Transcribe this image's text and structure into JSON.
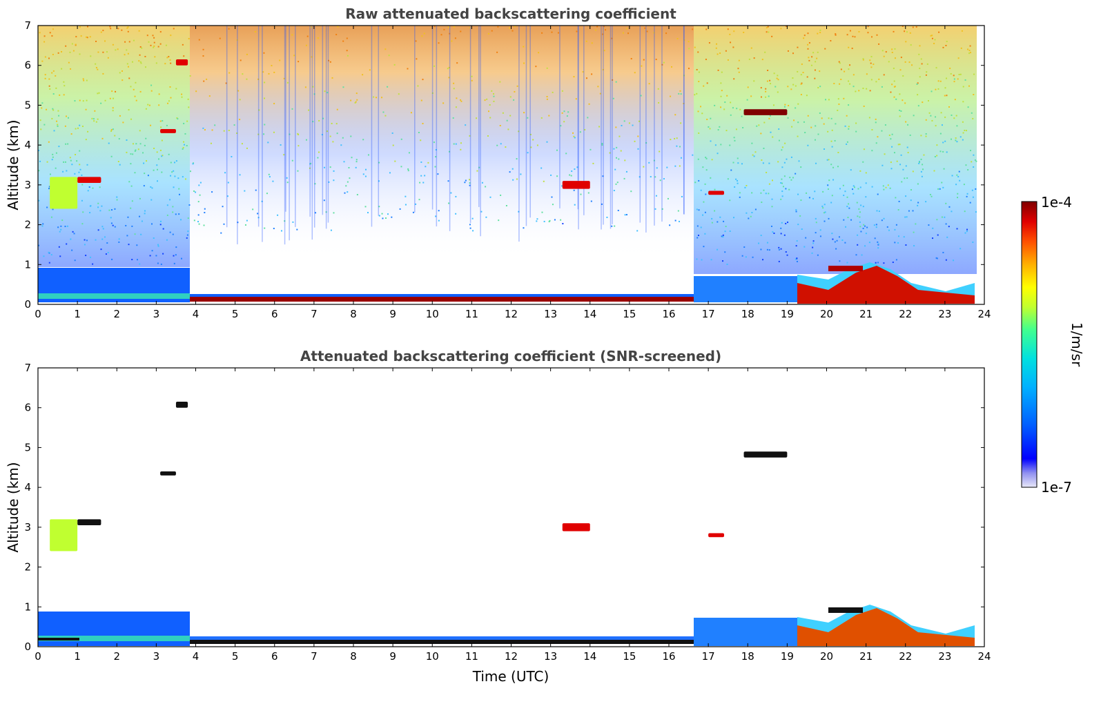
{
  "chart_data": [
    {
      "type": "heatmap",
      "title": "Raw attenuated backscattering coefficient",
      "xlabel": "",
      "ylabel": "Altitude (km)",
      "xlim": [
        0,
        24
      ],
      "ylim": [
        0,
        7
      ],
      "xticks": [
        "0",
        "1",
        "2",
        "3",
        "4",
        "5",
        "6",
        "7",
        "8",
        "9",
        "10",
        "11",
        "12",
        "13",
        "14",
        "15",
        "16",
        "17",
        "18",
        "19",
        "20",
        "21",
        "22",
        "23",
        "24"
      ],
      "yticks": [
        "0",
        "1",
        "2",
        "3",
        "4",
        "5",
        "6",
        "7"
      ],
      "grid": false,
      "features": [
        {
          "kind": "surface_layer",
          "x": [
            0,
            3.85
          ],
          "y": [
            0,
            0.85
          ],
          "level": 0.25
        },
        {
          "kind": "surface_layer",
          "x": [
            3.85,
            16.7
          ],
          "y": [
            0,
            0.2
          ],
          "level": 0.95
        },
        {
          "kind": "surface_layer",
          "x": [
            16.7,
            19.2
          ],
          "y": [
            0,
            0.7
          ],
          "level": 0.3
        },
        {
          "kind": "surface_layer",
          "x": [
            19.2,
            23.8
          ],
          "y": [
            0,
            1.0
          ],
          "level": 0.8
        },
        {
          "kind": "cloud",
          "x": [
            3.5,
            3.8
          ],
          "y": [
            6.0,
            6.15
          ],
          "level": 0.95
        },
        {
          "kind": "cloud",
          "x": [
            3.1,
            3.5
          ],
          "y": [
            4.3,
            4.4
          ],
          "level": 0.95
        },
        {
          "kind": "cloud",
          "x": [
            1.0,
            1.6
          ],
          "y": [
            3.05,
            3.2
          ],
          "level": 0.9
        },
        {
          "kind": "cloud",
          "x": [
            0.3,
            1.0
          ],
          "y": [
            2.4,
            3.2
          ],
          "level": 0.55
        },
        {
          "kind": "cloud",
          "x": [
            13.3,
            14.0
          ],
          "y": [
            2.9,
            3.1
          ],
          "level": 0.9
        },
        {
          "kind": "cloud",
          "x": [
            17.9,
            19.0
          ],
          "y": [
            4.75,
            4.9
          ],
          "level": 0.98
        },
        {
          "kind": "cloud",
          "x": [
            17.0,
            17.4
          ],
          "y": [
            2.75,
            2.85
          ],
          "level": 0.9
        }
      ]
    },
    {
      "type": "heatmap",
      "title": "Attenuated backscattering coefficient (SNR-screened)",
      "xlabel": "Time (UTC)",
      "ylabel": "Altitude (km)",
      "xlim": [
        0,
        24
      ],
      "ylim": [
        0,
        7
      ],
      "xticks": [
        "0",
        "1",
        "2",
        "3",
        "4",
        "5",
        "6",
        "7",
        "8",
        "9",
        "10",
        "11",
        "12",
        "13",
        "14",
        "15",
        "16",
        "17",
        "18",
        "19",
        "20",
        "21",
        "22",
        "23",
        "24"
      ],
      "yticks": [
        "0",
        "1",
        "2",
        "3",
        "4",
        "5",
        "6",
        "7"
      ],
      "grid": false,
      "features": [
        {
          "kind": "surface_layer",
          "x": [
            0,
            3.85
          ],
          "y": [
            0,
            0.85
          ],
          "level": 0.25
        },
        {
          "kind": "surface_layer",
          "x": [
            3.85,
            16.7
          ],
          "y": [
            0,
            0.2
          ],
          "level": 0.25
        },
        {
          "kind": "surface_layer",
          "x": [
            16.7,
            19.2
          ],
          "y": [
            0,
            0.75
          ],
          "level": 0.25
        },
        {
          "kind": "surface_layer",
          "x": [
            19.2,
            23.8
          ],
          "y": [
            0,
            1.0
          ],
          "level": 0.8
        },
        {
          "kind": "cloud",
          "x": [
            3.5,
            3.8
          ],
          "y": [
            6.0,
            6.15
          ],
          "level": 1.0
        },
        {
          "kind": "cloud",
          "x": [
            3.1,
            3.5
          ],
          "y": [
            4.3,
            4.4
          ],
          "level": 1.0
        },
        {
          "kind": "cloud",
          "x": [
            1.0,
            1.6
          ],
          "y": [
            3.05,
            3.2
          ],
          "level": 1.0
        },
        {
          "kind": "cloud",
          "x": [
            0.3,
            1.0
          ],
          "y": [
            2.4,
            3.2
          ],
          "level": 0.55
        },
        {
          "kind": "cloud",
          "x": [
            13.3,
            14.0
          ],
          "y": [
            2.9,
            3.1
          ],
          "level": 0.9
        },
        {
          "kind": "cloud",
          "x": [
            17.9,
            19.0
          ],
          "y": [
            4.75,
            4.9
          ],
          "level": 1.0
        },
        {
          "kind": "cloud",
          "x": [
            17.0,
            17.4
          ],
          "y": [
            2.75,
            2.85
          ],
          "level": 0.9
        }
      ]
    }
  ],
  "colorbar": {
    "label": "1/m/sr",
    "max_label": "1e-4",
    "min_label": "1e-7",
    "colors": [
      "#e8e8f8",
      "#9090f0",
      "#0000ff",
      "#0060ff",
      "#00b0ff",
      "#00e0e0",
      "#40ff90",
      "#c0ff30",
      "#ffff00",
      "#ffb000",
      "#ff5000",
      "#e00000",
      "#800000"
    ]
  },
  "colors": {
    "title": "#444444",
    "raw_noise_low": "#2050ff",
    "raw_noise_high": "#f0a000",
    "surface_blue": "#1060ff",
    "dark_red": "#9a0000"
  }
}
